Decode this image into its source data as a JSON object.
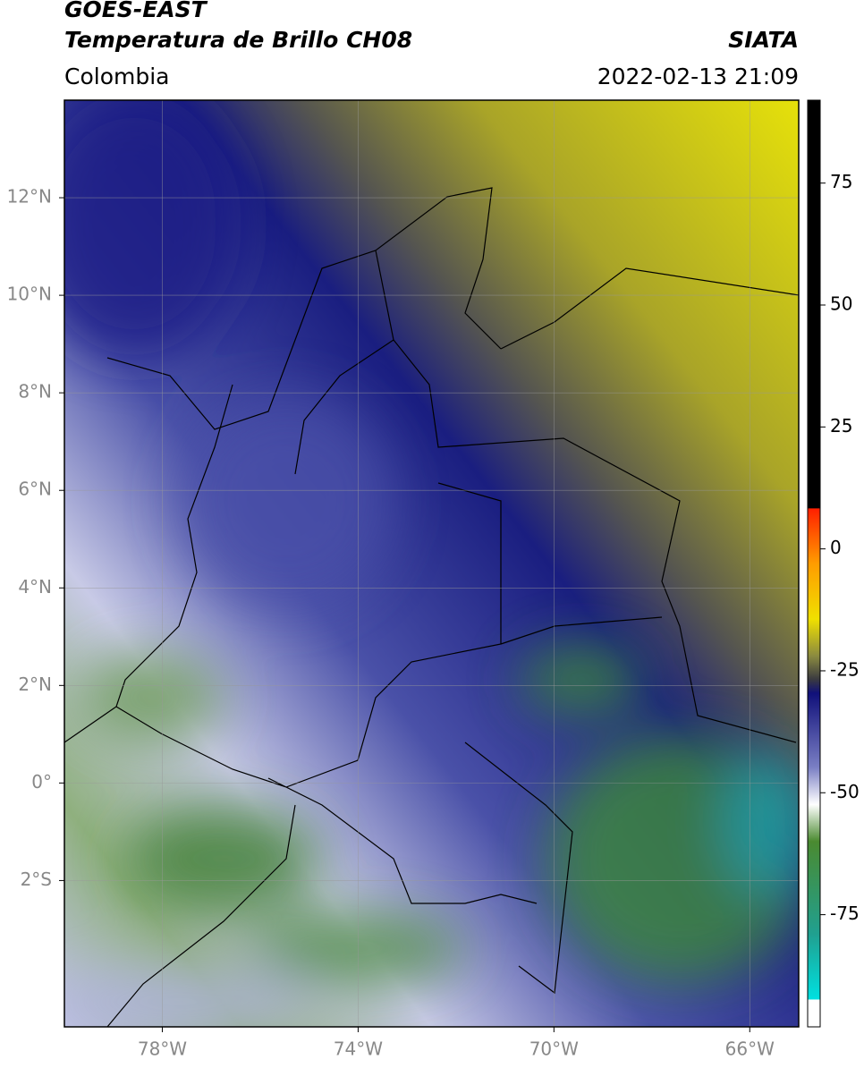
{
  "header": {
    "title_line1": "GOES-EAST",
    "title_line2": "Temperatura de Brillo CH08",
    "region": "Colombia",
    "source": "SIATA",
    "datetime": "2022-02-13 21:09"
  },
  "map": {
    "xlim": [
      -80,
      -65
    ],
    "ylim": [
      -5,
      14
    ],
    "xticks": [
      {
        "value": -78,
        "label": "78°W"
      },
      {
        "value": -74,
        "label": "74°W"
      },
      {
        "value": -70,
        "label": "70°W"
      },
      {
        "value": -66,
        "label": "66°W"
      }
    ],
    "yticks": [
      {
        "value": 12,
        "label": "12°N"
      },
      {
        "value": 10,
        "label": "10°N"
      },
      {
        "value": 8,
        "label": "8°N"
      },
      {
        "value": 6,
        "label": "6°N"
      },
      {
        "value": 4,
        "label": "4°N"
      },
      {
        "value": 2,
        "label": "2°N"
      },
      {
        "value": 0,
        "label": "0°"
      },
      {
        "value": -2,
        "label": "2°S"
      }
    ],
    "grid": true
  },
  "colorbar": {
    "lim": [
      -98,
      92
    ],
    "ticks": [
      75,
      50,
      25,
      0,
      -25,
      -50,
      -75
    ]
  }
}
